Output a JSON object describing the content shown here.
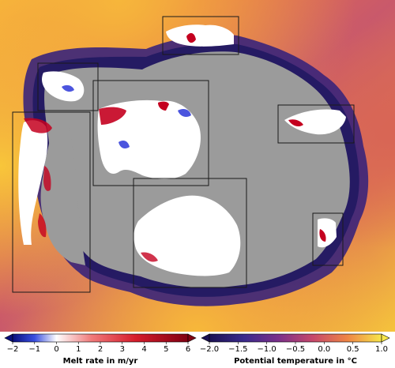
{
  "melt_colorbar": {
    "title": "Melt rate in m/yr",
    "ticks": [
      "−2",
      "−1",
      "0",
      "1",
      "2",
      "3",
      "4",
      "5",
      "6"
    ],
    "range": [
      -2,
      6
    ]
  },
  "temp_colorbar": {
    "title": "Potential temperature in °C",
    "ticks": [
      "−2.0",
      "−1.5",
      "−1.0",
      "−0.5",
      "0.0",
      "0.5",
      "1.0"
    ],
    "range": [
      -2.0,
      1.0
    ]
  },
  "colors": {
    "land": "#9b9b9b",
    "warm_ocean": "#f6c13a",
    "cold_ocean": "#2a237a",
    "melt_high": "#b3001a",
    "melt_zero": "#ffffff",
    "freeze": "#1f2bd6"
  }
}
